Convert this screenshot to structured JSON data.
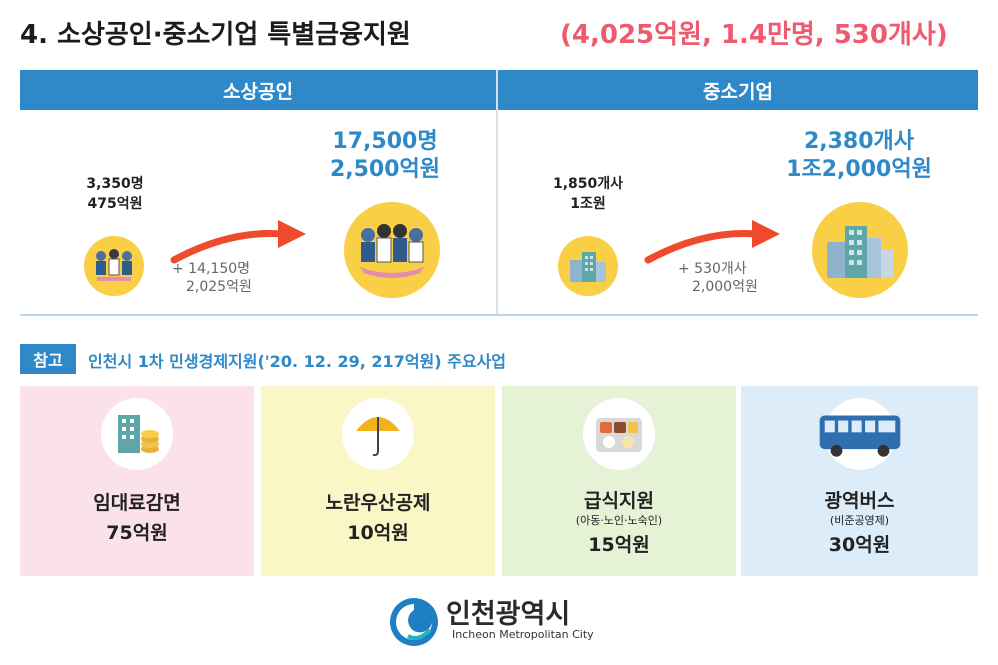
{
  "header": {
    "title": "4. 소상공인·중소기업 특별금융지원",
    "subtitle": "(4,025억원, 1.4만명, 530개사)"
  },
  "panels": {
    "small_business": {
      "heading": "소상공인",
      "before_count": "3,350명",
      "before_amount": "475억원",
      "delta_count": "+ 14,150명",
      "delta_amount": "2,025억원",
      "after_count": "17,500명",
      "after_amount": "2,500억원",
      "icon": "people-group-icon"
    },
    "sme": {
      "heading": "중소기업",
      "before_count": "1,850개사",
      "before_amount": "1조원",
      "delta_count": "+ 530개사",
      "delta_amount": "2,000억원",
      "after_count": "2,380개사",
      "after_amount": "1조2,000억원",
      "icon": "buildings-icon"
    }
  },
  "reference": {
    "badge": "참고",
    "text": "인천시 1차 민생경제지원('20. 12. 29, 217억원) 주요사업"
  },
  "cards": [
    {
      "title": "임대료감면",
      "note": "",
      "amount": "75억원",
      "icon": "building-coins-icon",
      "bg": "#fbe1ea"
    },
    {
      "title": "노란우산공제",
      "note": "",
      "amount": "10억원",
      "icon": "umbrella-icon",
      "bg": "#fbf6c6"
    },
    {
      "title": "급식지원",
      "note": "(아동·노인·노숙인)",
      "amount": "15억원",
      "icon": "meal-tray-icon",
      "bg": "#e6f2d6"
    },
    {
      "title": "광역버스",
      "note": "(비준공영제)",
      "amount": "30억원",
      "icon": "bus-icon",
      "bg": "#dcecf8"
    }
  ],
  "logo": {
    "name": "인천광역시",
    "english": "Incheon Metropolitan City"
  },
  "colors": {
    "accent_blue": "#2f89c8",
    "accent_pink": "#ee5a6e",
    "icon_yellow": "#f8cf45",
    "arrow_red": "#ef4a2c"
  }
}
